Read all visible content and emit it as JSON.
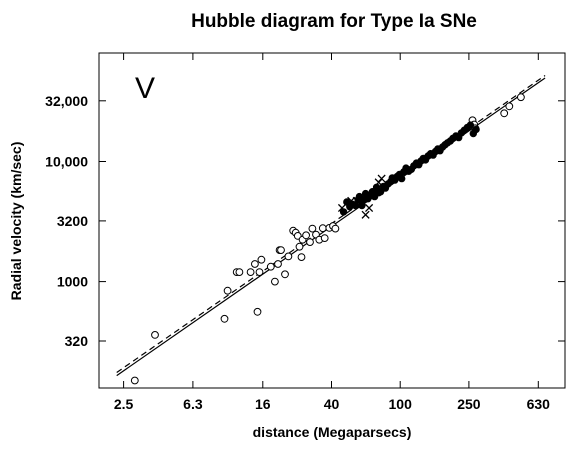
{
  "chart_data": {
    "type": "scatter",
    "title": "Hubble diagram for Type Ia SNe",
    "xlabel": "distance (Megaparsecs)",
    "ylabel": "Radial velocity (km/sec)",
    "panel_label": "V",
    "x_scale": "log",
    "y_scale": "log",
    "xlim": [
      1.8,
      900
    ],
    "ylim": [
      130,
      80000
    ],
    "x_ticks": [
      2.5,
      6.3,
      16,
      40,
      100,
      250,
      630
    ],
    "x_tick_labels": [
      "2.5",
      "6.3",
      "16",
      "40",
      "100",
      "250",
      "630"
    ],
    "y_ticks": [
      320,
      1000,
      3200,
      10000,
      32000
    ],
    "y_tick_labels": [
      "320",
      "1000",
      "3200",
      "10,000",
      "32,000"
    ],
    "grid": false,
    "legend": "none",
    "series": [
      {
        "marker": "open-circle",
        "points": [
          [
            2.9,
            150
          ],
          [
            3.8,
            360
          ],
          [
            9.6,
            490
          ],
          [
            10.0,
            840
          ],
          [
            11.3,
            1200
          ],
          [
            11.7,
            1200
          ],
          [
            13.6,
            1200
          ],
          [
            14.4,
            1400
          ],
          [
            14.9,
            560
          ],
          [
            15.3,
            1200
          ],
          [
            15.7,
            1520
          ],
          [
            17.8,
            1330
          ],
          [
            18.8,
            1000
          ],
          [
            19.6,
            1400
          ],
          [
            20.0,
            1830
          ],
          [
            20.4,
            1830
          ],
          [
            21.5,
            1150
          ],
          [
            22.5,
            1620
          ],
          [
            24.0,
            2650
          ],
          [
            24.8,
            2550
          ],
          [
            25.5,
            2400
          ],
          [
            26.1,
            1950
          ],
          [
            26.8,
            1600
          ],
          [
            27.2,
            2230
          ],
          [
            28.5,
            2430
          ],
          [
            30.0,
            2130
          ],
          [
            31.0,
            2760
          ],
          [
            32.5,
            2460
          ],
          [
            34.0,
            2230
          ],
          [
            35.6,
            2780
          ],
          [
            36.5,
            2300
          ],
          [
            38.8,
            2800
          ],
          [
            40.8,
            2900
          ],
          [
            42.1,
            2760
          ],
          [
            262,
            22000
          ],
          [
            268,
            20300
          ],
          [
            272,
            18900
          ],
          [
            400,
            25200
          ],
          [
            428,
            28800
          ],
          [
            500,
            34300
          ]
        ]
      },
      {
        "marker": "filled-circle",
        "points": [
          [
            47,
            3800
          ],
          [
            49,
            4600
          ],
          [
            51,
            4200
          ],
          [
            53,
            4400
          ],
          [
            55,
            4300
          ],
          [
            57,
            4800
          ],
          [
            58,
            5100
          ],
          [
            60,
            4300
          ],
          [
            61,
            4800
          ],
          [
            63,
            5400
          ],
          [
            65,
            4900
          ],
          [
            67,
            5200
          ],
          [
            69,
            5600
          ],
          [
            71,
            5100
          ],
          [
            73,
            6100
          ],
          [
            75,
            5500
          ],
          [
            77,
            5600
          ],
          [
            80,
            6200
          ],
          [
            82,
            6000
          ],
          [
            85,
            6500
          ],
          [
            88,
            6800
          ],
          [
            90,
            7300
          ],
          [
            93,
            7000
          ],
          [
            96,
            7500
          ],
          [
            99,
            7800
          ],
          [
            102,
            7200
          ],
          [
            105,
            8200
          ],
          [
            108,
            8800
          ],
          [
            112,
            8300
          ],
          [
            116,
            8600
          ],
          [
            120,
            9200
          ],
          [
            124,
            9700
          ],
          [
            128,
            9400
          ],
          [
            132,
            10100
          ],
          [
            136,
            10600
          ],
          [
            140,
            10300
          ],
          [
            145,
            11100
          ],
          [
            150,
            11600
          ],
          [
            155,
            11300
          ],
          [
            160,
            12100
          ],
          [
            165,
            12700
          ],
          [
            170,
            12300
          ],
          [
            176,
            13200
          ],
          [
            182,
            13800
          ],
          [
            188,
            14300
          ],
          [
            195,
            14800
          ],
          [
            202,
            15600
          ],
          [
            210,
            16300
          ],
          [
            218,
            15800
          ],
          [
            226,
            17300
          ],
          [
            235,
            18200
          ],
          [
            245,
            19200
          ],
          [
            255,
            20100
          ],
          [
            265,
            17100
          ],
          [
            275,
            18500
          ]
        ]
      },
      {
        "marker": "cross",
        "points": [
          [
            46,
            4100
          ],
          [
            52,
            4700
          ],
          [
            56,
            4700
          ],
          [
            63,
            3600
          ],
          [
            66,
            4100
          ],
          [
            75,
            6700
          ],
          [
            78,
            7200
          ]
        ]
      }
    ],
    "fit_lines": [
      {
        "style": "solid",
        "points": [
          [
            2.28,
            165
          ],
          [
            690,
            49500
          ]
        ]
      },
      {
        "style": "dashed",
        "points": [
          [
            2.28,
            175
          ],
          [
            690,
            52000
          ]
        ]
      }
    ]
  }
}
